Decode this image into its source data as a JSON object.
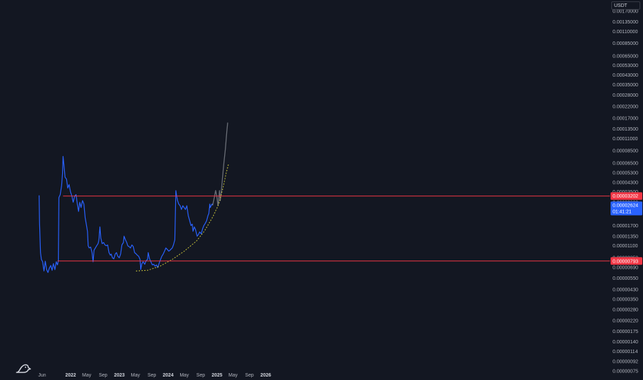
{
  "currency": "USDT",
  "colors": {
    "background": "#131722",
    "price_line": "#2962ff",
    "projection": "#6b6f78",
    "horizontal_line": "#f23645",
    "curve": "#c7c23a",
    "axis_text": "#b2b5be"
  },
  "logo_icon": "tradingview-logo-icon",
  "chart_data": {
    "type": "line",
    "y_scale": "log",
    "title": "",
    "xlabel": "",
    "ylabel": "",
    "x_tick_labels": [
      "Jun",
      "2022",
      "May",
      "Sep",
      "2023",
      "May",
      "Sep",
      "2024",
      "May",
      "Sep",
      "2025",
      "May",
      "Sep",
      "2026"
    ],
    "y_tick_labels": [
      "0.00170000",
      "0.00135000",
      "0.00110000",
      "0.00085000",
      "0.00065000",
      "0.00053000",
      "0.00043000",
      "0.00035000",
      "0.00028000",
      "0.00022000",
      "0.00017000",
      "0.00013500",
      "0.00011000",
      "0.00008500",
      "0.00006500",
      "0.00005300",
      "0.00004300",
      "0.00003500",
      "0.00002800",
      "0.00002200",
      "0.00001700",
      "0.00001350",
      "0.00001100",
      "0.00000850",
      "0.00000690",
      "0.00000550",
      "0.00000430",
      "0.00000350",
      "0.00000280",
      "0.00000220",
      "0.00000175",
      "0.00000140",
      "0.00000114",
      "0.00000092",
      "0.00000075"
    ],
    "price_label": {
      "value": "0.00002624",
      "countdown": "01:41:21"
    },
    "horizontal_levels": [
      {
        "value": "0.00003202"
      },
      {
        "value": "0.00000793"
      }
    ],
    "series": [
      {
        "values": [
          [
            "2021-05-10",
            3.25e-05
          ],
          [
            "2021-05-13",
            1.8e-05
          ],
          [
            "2021-05-20",
            9.5e-06
          ],
          [
            "2021-05-27",
            8.2e-06
          ],
          [
            "2021-06-05",
            7.8e-06
          ],
          [
            "2021-06-15",
            6.4e-06
          ],
          [
            "2021-06-25",
            7.9e-06
          ],
          [
            "2021-07-05",
            6.6e-06
          ],
          [
            "2021-07-15",
            6.2e-06
          ],
          [
            "2021-07-25",
            6.8e-06
          ],
          [
            "2021-08-05",
            7.2e-06
          ],
          [
            "2021-08-15",
            6.5e-06
          ],
          [
            "2021-08-25",
            7.5e-06
          ],
          [
            "2021-09-05",
            6.6e-06
          ],
          [
            "2021-09-15",
            7.8e-06
          ],
          [
            "2021-09-25",
            7.3e-06
          ],
          [
            "2021-10-01",
            8e-06
          ],
          [
            "2021-10-05",
            3.1e-05
          ],
          [
            "2021-10-15",
            3.3e-05
          ],
          [
            "2021-10-25",
            4e-05
          ],
          [
            "2021-11-01",
            5.2e-05
          ],
          [
            "2021-11-05",
            7.5e-05
          ],
          [
            "2021-11-12",
            6.2e-05
          ],
          [
            "2021-11-20",
            4.8e-05
          ],
          [
            "2021-12-01",
            4.6e-05
          ],
          [
            "2021-12-10",
            3.8e-05
          ],
          [
            "2021-12-20",
            4.1e-05
          ],
          [
            "2021-12-31",
            3.5e-05
          ],
          [
            "2022-01-10",
            3.2e-05
          ],
          [
            "2022-01-20",
            2.8e-05
          ],
          [
            "2022-01-31",
            3.2e-05
          ],
          [
            "2022-02-10",
            3.3e-05
          ],
          [
            "2022-02-20",
            2.7e-05
          ],
          [
            "2022-03-01",
            2.3e-05
          ],
          [
            "2022-03-10",
            2.8e-05
          ],
          [
            "2022-03-20",
            2.5e-05
          ],
          [
            "2022-03-31",
            2.9e-05
          ],
          [
            "2022-04-10",
            2.7e-05
          ],
          [
            "2022-04-20",
            2e-05
          ],
          [
            "2022-04-30",
            1.7e-05
          ],
          [
            "2022-05-07",
            1.5e-05
          ],
          [
            "2022-05-12",
            1.1e-05
          ],
          [
            "2022-05-20",
            1.05e-05
          ],
          [
            "2022-05-31",
            1.07e-05
          ],
          [
            "2022-06-10",
            9.5e-06
          ],
          [
            "2022-06-18",
            7.8e-06
          ],
          [
            "2022-06-25",
            1e-05
          ],
          [
            "2022-07-05",
            1.05e-05
          ],
          [
            "2022-07-15",
            1.1e-05
          ],
          [
            "2022-07-25",
            1.15e-05
          ],
          [
            "2022-08-01",
            1.25e-05
          ],
          [
            "2022-08-08",
            1.65e-05
          ],
          [
            "2022-08-15",
            1.3e-05
          ],
          [
            "2022-08-25",
            1.15e-05
          ],
          [
            "2022-09-05",
            1.18e-05
          ],
          [
            "2022-09-15",
            1.12e-05
          ],
          [
            "2022-09-25",
            1.1e-05
          ],
          [
            "2022-10-05",
            1.12e-05
          ],
          [
            "2022-10-15",
            9.5e-06
          ],
          [
            "2022-10-25",
            9e-06
          ],
          [
            "2022-11-01",
            9.2e-06
          ],
          [
            "2022-11-10",
            8.5e-06
          ],
          [
            "2022-11-20",
            8.3e-06
          ],
          [
            "2022-12-01",
            9.2e-06
          ],
          [
            "2022-12-10",
            9.5e-06
          ],
          [
            "2022-12-20",
            8.8e-06
          ],
          [
            "2022-12-31",
            8.5e-06
          ],
          [
            "2023-01-10",
            9.2e-06
          ],
          [
            "2023-01-20",
            1.12e-05
          ],
          [
            "2023-01-31",
            1.18e-05
          ],
          [
            "2023-02-05",
            1.35e-05
          ],
          [
            "2023-02-15",
            1.25e-05
          ],
          [
            "2023-02-25",
            1.18e-05
          ],
          [
            "2023-03-05",
            1.1e-05
          ],
          [
            "2023-03-15",
            1.08e-05
          ],
          [
            "2023-03-25",
            1.05e-05
          ],
          [
            "2023-04-05",
            1.12e-05
          ],
          [
            "2023-04-15",
            1.08e-05
          ],
          [
            "2023-04-25",
            9.5e-06
          ],
          [
            "2023-05-05",
            9.3e-06
          ],
          [
            "2023-05-15",
            9e-06
          ],
          [
            "2023-05-25",
            8.8e-06
          ],
          [
            "2023-06-05",
            8.2e-06
          ],
          [
            "2023-06-10",
            6.6e-06
          ],
          [
            "2023-06-18",
            7.5e-06
          ],
          [
            "2023-06-28",
            7.8e-06
          ],
          [
            "2023-07-10",
            7.4e-06
          ],
          [
            "2023-07-20",
            8e-06
          ],
          [
            "2023-07-31",
            8.2e-06
          ],
          [
            "2023-08-05",
            9.5e-06
          ],
          [
            "2023-08-15",
            8.3e-06
          ],
          [
            "2023-08-25",
            7.8e-06
          ],
          [
            "2023-09-05",
            7.3e-06
          ],
          [
            "2023-09-15",
            7.4e-06
          ],
          [
            "2023-09-25",
            7.1e-06
          ],
          [
            "2023-10-05",
            7.3e-06
          ],
          [
            "2023-10-15",
            6.9e-06
          ],
          [
            "2023-10-25",
            7.5e-06
          ],
          [
            "2023-11-05",
            8.2e-06
          ],
          [
            "2023-11-15",
            8.8e-06
          ],
          [
            "2023-11-25",
            9.2e-06
          ],
          [
            "2023-12-05",
            9.8e-06
          ],
          [
            "2023-12-15",
            1.05e-05
          ],
          [
            "2023-12-25",
            1.02e-05
          ],
          [
            "2024-01-05",
            9.8e-06
          ],
          [
            "2024-01-15",
            1e-05
          ],
          [
            "2024-01-25",
            1.03e-05
          ],
          [
            "2024-02-01",
            1.05e-05
          ],
          [
            "2024-02-10",
            1.12e-05
          ],
          [
            "2024-02-20",
            1.25e-05
          ],
          [
            "2024-02-28",
            3.6e-05
          ],
          [
            "2024-03-05",
            3.2e-05
          ],
          [
            "2024-03-12",
            2.9e-05
          ],
          [
            "2024-03-20",
            2.7e-05
          ],
          [
            "2024-03-31",
            2.6e-05
          ],
          [
            "2024-04-10",
            2.4e-05
          ],
          [
            "2024-04-20",
            2.6e-05
          ],
          [
            "2024-04-30",
            2.5e-05
          ],
          [
            "2024-05-10",
            2.4e-05
          ],
          [
            "2024-05-20",
            2.6e-05
          ],
          [
            "2024-05-31",
            2.1e-05
          ],
          [
            "2024-06-10",
            1.9e-05
          ],
          [
            "2024-06-20",
            1.7e-05
          ],
          [
            "2024-06-30",
            1.75e-05
          ],
          [
            "2024-07-05",
            1.5e-05
          ],
          [
            "2024-07-15",
            1.65e-05
          ],
          [
            "2024-07-25",
            1.55e-05
          ],
          [
            "2024-08-05",
            1.35e-05
          ],
          [
            "2024-08-15",
            1.4e-05
          ],
          [
            "2024-08-25",
            1.48e-05
          ],
          [
            "2024-09-05",
            1.42e-05
          ],
          [
            "2024-09-15",
            1.58e-05
          ],
          [
            "2024-09-25",
            1.7e-05
          ],
          [
            "2024-10-05",
            1.78e-05
          ],
          [
            "2024-10-15",
            1.88e-05
          ],
          [
            "2024-10-25",
            2.1e-05
          ],
          [
            "2024-11-01",
            2.2e-05
          ],
          [
            "2024-11-08",
            2.7e-05
          ],
          [
            "2024-11-12",
            2.5e-05
          ],
          [
            "2024-11-18",
            2.6e-05
          ],
          [
            "2024-11-25",
            2.7e-05
          ],
          [
            "2024-11-30",
            2.624e-05
          ]
        ]
      },
      {
        "values": [
          [
            "2024-11-30",
            2.624e-05
          ],
          [
            "2024-12-12",
            3.1e-05
          ],
          [
            "2024-12-22",
            3.6e-05
          ],
          [
            "2025-01-01",
            3.1e-05
          ],
          [
            "2025-01-08",
            2.6e-05
          ],
          [
            "2025-01-15",
            3.1e-05
          ],
          [
            "2025-01-20",
            3.6e-05
          ],
          [
            "2025-01-26",
            2.9e-05
          ],
          [
            "2025-02-03",
            3.6e-05
          ],
          [
            "2025-02-12",
            4.8e-05
          ],
          [
            "2025-02-22",
            6.6e-05
          ],
          [
            "2025-03-05",
            8.8e-05
          ],
          [
            "2025-03-15",
            0.000125
          ],
          [
            "2025-03-22",
            0.000155
          ]
        ]
      },
      {
        "values": [
          [
            "2023-05-05",
            6.4e-06
          ],
          [
            "2023-08-01",
            6.5e-06
          ],
          [
            "2023-11-01",
            7.1e-06
          ],
          [
            "2024-02-01",
            8.2e-06
          ],
          [
            "2024-05-01",
            9.8e-06
          ],
          [
            "2024-08-01",
            1.22e-05
          ],
          [
            "2024-10-01",
            1.52e-05
          ],
          [
            "2024-12-01",
            2.05e-05
          ],
          [
            "2025-01-15",
            2.7e-05
          ],
          [
            "2025-02-15",
            3.8e-05
          ],
          [
            "2025-03-10",
            5.2e-05
          ],
          [
            "2025-03-28",
            6.35e-05
          ]
        ]
      }
    ]
  }
}
